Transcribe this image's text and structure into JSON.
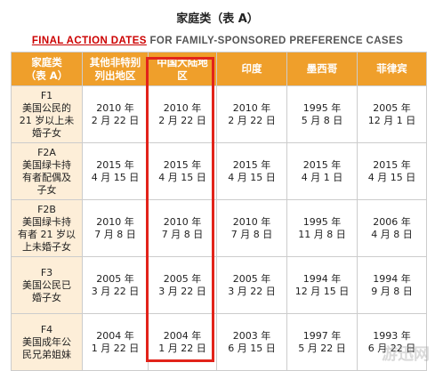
{
  "title": "家庭类（表 A）",
  "subtitle": {
    "red": "FINAL ACTION DATES",
    "rest": " FOR FAMILY-SPONSORED PREFERENCE CASES"
  },
  "table": {
    "headers": [
      "家庭类\n（表 A）",
      "其他非特别\n列出地区",
      "中国大陆地\n区",
      "印度",
      "墨西哥",
      "菲律宾"
    ],
    "rows": [
      {
        "category": "F1\n美国公民的\n21 岁以上未\n婚子女",
        "dates": [
          "2010 年\n2 月 22 日",
          "2010 年\n2 月 22 日",
          "2010 年\n2 月 22 日",
          "1995 年\n5 月 8 日",
          "2005 年\n12 月 1 日"
        ]
      },
      {
        "category": "F2A\n美国绿卡持\n有者配偶及\n子女",
        "dates": [
          "2015 年\n4 月 15 日",
          "2015 年\n4 月 15 日",
          "2015 年\n4 月 15 日",
          "2015 年\n4 月 1 日",
          "2015 年\n4 月 15 日"
        ]
      },
      {
        "category": "F2B\n美国绿卡持\n有者 21 岁以\n上未婚子女",
        "dates": [
          "2010 年\n7 月 8 日",
          "2010 年\n7 月 8 日",
          "2010 年\n7 月 8 日",
          "1995 年\n11 月 8 日",
          "2006 年\n4 月 8 日"
        ]
      },
      {
        "category": "F3\n美国公民已\n婚子女",
        "dates": [
          "2005 年\n3 月 22 日",
          "2005 年\n3 月 22 日",
          "2005 年\n3 月 22 日",
          "1994 年\n12 月 15 日",
          "1994 年\n9 月 8 日"
        ]
      },
      {
        "category": "F4\n美国成年公\n民兄弟姐妹",
        "dates": [
          "2004 年\n1 月 22 日",
          "2004 年\n1 月 22 日",
          "2003 年\n6 月 15 日",
          "1997 年\n5 月 22 日",
          "1993 年\n6 月 22 日"
        ]
      }
    ]
  },
  "watermark": "游迅网"
}
